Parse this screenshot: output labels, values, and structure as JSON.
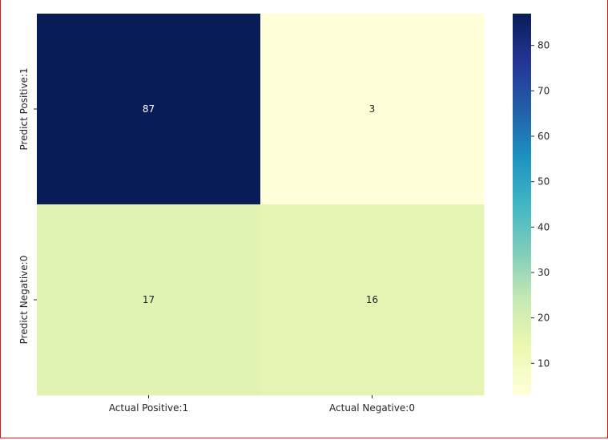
{
  "chart_data": {
    "type": "heatmap",
    "title": "",
    "xlabel": "",
    "ylabel": "",
    "x_categories": [
      "Actual Positive:1",
      "Actual Negative:0"
    ],
    "y_categories": [
      "Predict Positive:1",
      "Predict Negative:0"
    ],
    "values": [
      [
        87,
        3
      ],
      [
        17,
        16
      ]
    ],
    "annotated": true,
    "colormap": "YlGnBu",
    "colormap_stops": [
      "#ffffd9",
      "#edf8b1",
      "#c7e9b4",
      "#7fcdbb",
      "#41b6c4",
      "#1d91c0",
      "#225ea8",
      "#253494",
      "#081d58"
    ],
    "colorbar": {
      "range": [
        3,
        87
      ],
      "ticks": [
        10,
        20,
        30,
        40,
        50,
        60,
        70,
        80
      ],
      "tick_labels": [
        "10",
        "20",
        "30",
        "40",
        "50",
        "60",
        "70",
        "80"
      ]
    },
    "grid": false,
    "legend": "colorbar-right"
  }
}
